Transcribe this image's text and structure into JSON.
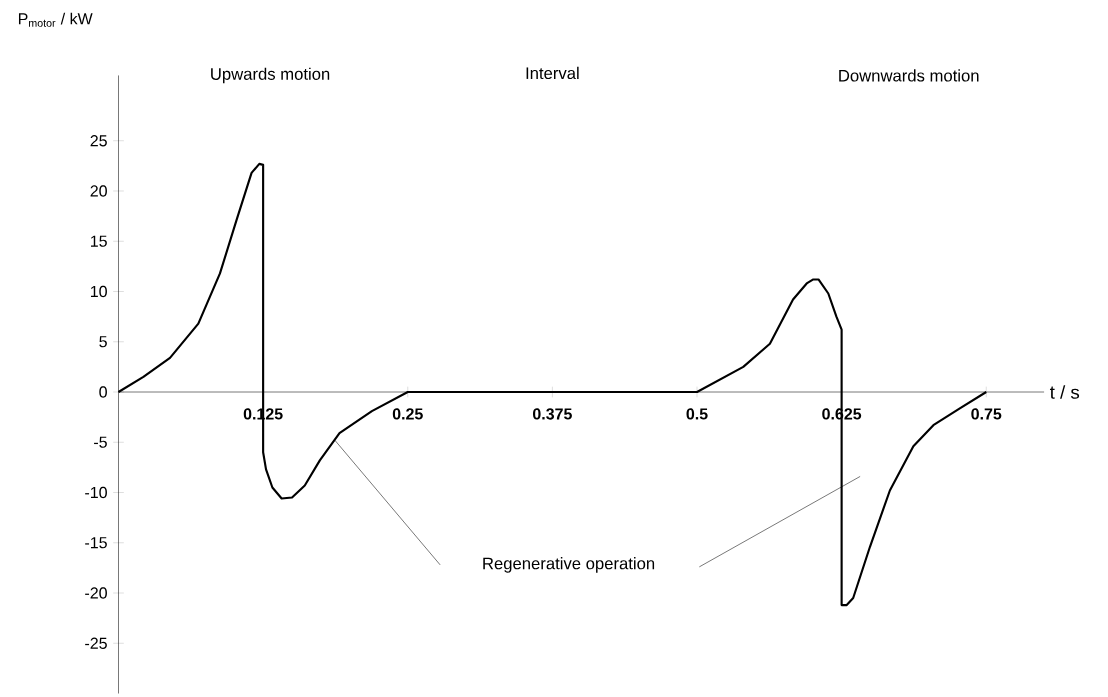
{
  "chart_data": {
    "type": "line",
    "xlabel": "t / s",
    "ylabel": "P$_{motor}$  / kW",
    "x": [
      0,
      0.0215,
      0.0445,
      0.069,
      0.0877,
      0.102,
      0.115,
      0.1217,
      0.125,
      0.125,
      0.1275,
      0.133,
      0.141,
      0.15,
      0.161,
      0.174,
      0.191,
      0.219,
      0.25,
      0.375,
      0.5,
      0.54,
      0.563,
      0.583,
      0.5948,
      0.6005,
      0.605,
      0.6135,
      0.6205,
      0.625,
      0.625,
      0.6294,
      0.635,
      0.6495,
      0.6667,
      0.687,
      0.7043,
      0.7275,
      0.75
    ],
    "values": [
      0,
      1.5,
      3.4,
      6.8,
      11.8,
      17.1,
      21.8,
      22.7,
      22.6,
      -6,
      -7.7,
      -9.5,
      -10.6,
      -10.5,
      -9.3,
      -6.8,
      -4.1,
      -1.9,
      0,
      0,
      0,
      2.5,
      4.8,
      9.2,
      10.8,
      11.2,
      11.2,
      9.8,
      7.5,
      6.2,
      -21.2,
      -21.2,
      -20.5,
      -15.4,
      -9.8,
      -5.4,
      -3.3,
      -1.6,
      0
    ],
    "color": "#000000",
    "line_style": "solid",
    "xlim": [
      0,
      0.8
    ],
    "ylim": [
      -30,
      31.5
    ],
    "xticks": [
      0.125,
      0.25,
      0.375,
      0.5,
      0.625,
      0.75
    ],
    "yticks": [
      -25,
      -20,
      -15,
      -10,
      -5,
      0,
      5,
      10,
      15,
      20,
      25
    ],
    "annotations": [
      "Upwards motion",
      "Interval",
      "Downwards motion",
      "Regenerative operation"
    ]
  }
}
